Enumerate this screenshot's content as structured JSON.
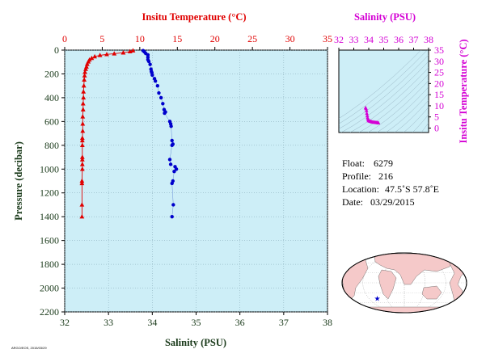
{
  "colors": {
    "temperature": "#e00000",
    "salinity": "#0000cc",
    "inset": "#d400d4",
    "axis_text": "#1a3a1a",
    "panel_bg": "#cdeef7",
    "land": "#f5c9c9",
    "ocean": "#ffffff"
  },
  "info": {
    "float_label": "Float:",
    "float_value": "6279",
    "profile_label": "Profile:",
    "profile_value": "216",
    "location_label": "Location:",
    "location_value": "47.5˚S  57.8˚E",
    "date_label": "Date:",
    "date_value": "03/29/2015"
  },
  "footer_text": "ARGO/EOS, 2015/03/29",
  "chart_data": [
    {
      "type": "line",
      "title": "",
      "y_title": "Pressure (decibar)",
      "y_range": [
        0,
        2200
      ],
      "y_inverted": true,
      "y_ticks": [
        0,
        200,
        400,
        600,
        800,
        1000,
        1200,
        1400,
        1600,
        1800,
        2000,
        2200
      ],
      "top_axis": {
        "title": "Insitu Temperature (°C)",
        "range": [
          0,
          35
        ],
        "ticks": [
          0,
          5,
          10,
          15,
          20,
          25,
          30,
          35
        ]
      },
      "bottom_axis": {
        "title": "Salinity (PSU)",
        "range": [
          32,
          38
        ],
        "ticks": [
          32,
          33,
          34,
          35,
          36,
          37,
          38
        ]
      },
      "grid": true,
      "series": [
        {
          "marker": "triangle",
          "axis": "top",
          "points": [
            [
              9.1,
              5
            ],
            [
              8.7,
              12
            ],
            [
              7.8,
              22
            ],
            [
              6.6,
              30
            ],
            [
              5.6,
              36
            ],
            [
              4.7,
              44
            ],
            [
              4.0,
              55
            ],
            [
              3.6,
              68
            ],
            [
              3.3,
              82
            ],
            [
              3.15,
              98
            ],
            [
              3.0,
              118
            ],
            [
              2.9,
              140
            ],
            [
              2.8,
              160
            ],
            [
              2.7,
              185
            ],
            [
              2.65,
              215
            ],
            [
              2.6,
              250
            ],
            [
              2.55,
              300
            ],
            [
              2.5,
              350
            ],
            [
              2.5,
              400
            ],
            [
              2.45,
              450
            ],
            [
              2.45,
              500
            ],
            [
              2.4,
              560
            ],
            [
              2.4,
              620
            ],
            [
              2.4,
              680
            ],
            [
              2.35,
              740
            ],
            [
              2.35,
              760
            ],
            [
              2.35,
              800
            ],
            [
              2.35,
              900
            ],
            [
              2.35,
              920
            ],
            [
              2.35,
              960
            ],
            [
              2.35,
              1000
            ],
            [
              2.3,
              1100
            ],
            [
              2.3,
              1120
            ],
            [
              2.3,
              1300
            ],
            [
              2.3,
              1400
            ]
          ]
        },
        {
          "marker": "circle",
          "axis": "bottom",
          "points": [
            [
              33.79,
              5
            ],
            [
              33.82,
              15
            ],
            [
              33.85,
              28
            ],
            [
              33.9,
              40
            ],
            [
              33.9,
              60
            ],
            [
              33.9,
              80
            ],
            [
              33.92,
              95
            ],
            [
              33.95,
              120
            ],
            [
              33.97,
              160
            ],
            [
              33.98,
              180
            ],
            [
              33.99,
              190
            ],
            [
              34.0,
              210
            ],
            [
              34.05,
              240
            ],
            [
              34.07,
              260
            ],
            [
              34.12,
              300
            ],
            [
              34.15,
              360
            ],
            [
              34.2,
              400
            ],
            [
              34.24,
              450
            ],
            [
              34.27,
              500
            ],
            [
              34.3,
              520
            ],
            [
              34.28,
              530
            ],
            [
              34.4,
              600
            ],
            [
              34.42,
              620
            ],
            [
              34.43,
              640
            ],
            [
              34.45,
              760
            ],
            [
              34.47,
              790
            ],
            [
              34.45,
              800
            ],
            [
              34.4,
              920
            ],
            [
              34.42,
              960
            ],
            [
              34.52,
              980
            ],
            [
              34.55,
              1000
            ],
            [
              34.5,
              1020
            ],
            [
              34.47,
              1100
            ],
            [
              34.45,
              1120
            ],
            [
              34.48,
              1300
            ],
            [
              34.45,
              1400
            ]
          ]
        }
      ]
    },
    {
      "type": "scatter",
      "title": "",
      "x_title": "Salinity (PSU)",
      "y_title": "Insitu Temperature (°C)",
      "x_range": [
        32,
        38
      ],
      "x_ticks": [
        32,
        33,
        34,
        35,
        36,
        37,
        38
      ],
      "y_range": [
        -2,
        35
      ],
      "y_ticks": [
        0,
        5,
        10,
        15,
        20,
        25,
        30,
        35
      ],
      "points": [
        [
          33.79,
          9.1
        ],
        [
          33.82,
          8.7
        ],
        [
          33.85,
          7.8
        ],
        [
          33.87,
          6.6
        ],
        [
          33.9,
          5.6
        ],
        [
          33.92,
          4.7
        ],
        [
          33.95,
          4.0
        ],
        [
          33.98,
          3.6
        ],
        [
          34.0,
          3.3
        ],
        [
          34.05,
          3.15
        ],
        [
          34.1,
          3.0
        ],
        [
          34.15,
          2.9
        ],
        [
          34.2,
          2.8
        ],
        [
          34.25,
          2.7
        ],
        [
          34.3,
          2.65
        ],
        [
          34.35,
          2.6
        ],
        [
          34.4,
          2.55
        ],
        [
          34.45,
          2.5
        ],
        [
          34.5,
          2.45
        ],
        [
          34.55,
          2.4
        ],
        [
          34.6,
          2.35
        ],
        [
          34.65,
          2.3
        ]
      ]
    }
  ],
  "map": {
    "marker_symbol": "★",
    "marker_lon": 57.8,
    "marker_lat": -47.5
  }
}
